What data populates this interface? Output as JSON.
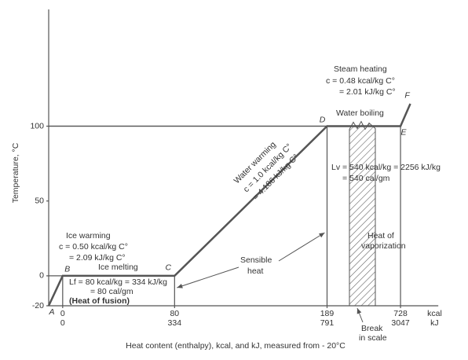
{
  "chart_data": {
    "type": "line",
    "x": [
      -10,
      0,
      80,
      189,
      728,
      735
    ],
    "values": [
      -20,
      0,
      0,
      100,
      100,
      115
    ],
    "point_labels": [
      "A",
      "B",
      "C",
      "D",
      "E",
      "F"
    ],
    "color": "#555555",
    "xlim": [
      -10,
      755
    ],
    "ylim": [
      -20,
      178
    ],
    "x_break": [
      205,
      710
    ],
    "xticks": [
      0,
      80,
      189,
      728
    ],
    "xticks_kj": [
      0,
      334,
      791,
      3047
    ],
    "x_unit_1": "kcal",
    "x_unit_2": "kJ",
    "yticks": [
      -20,
      0,
      50,
      100
    ],
    "ylabel": "Temperature, °C",
    "xlabel": "Heat content (enthalpy), kcal, and kJ, measured from - 20°C",
    "annotations": [
      "Steam heating",
      "c = 0.48 kcal/kg C°",
      "= 2.01 kJ/kg C°",
      "Water boiling",
      "Lv = 540 kcal/kg = 2256 kJ/kg",
      "= 540 cal/gm",
      "Heat of",
      "vaporization",
      "Water warming",
      "c = 1.0 kcal/kg C°",
      "= 4.186 kJ/kg C°",
      "Sensible",
      "heat",
      "Ice warming",
      "c = 0.50 kcal/kg C°",
      "= 2.09 kJ/kg C°",
      "Ice melting",
      "Lf = 80 kcal/kg = 334 kJ/kg",
      "= 80 cal/gm",
      "(Heat of fusion)",
      "Break",
      "in scale"
    ]
  }
}
